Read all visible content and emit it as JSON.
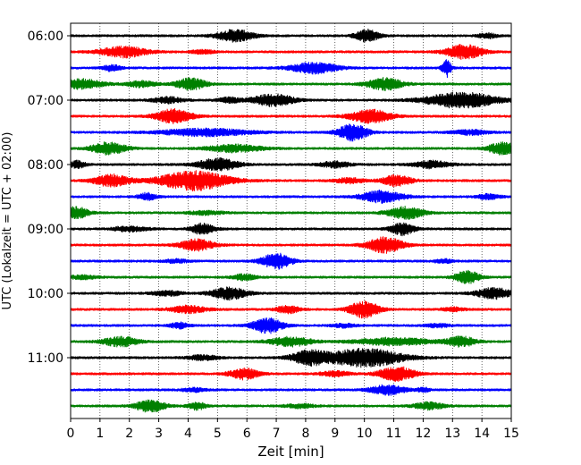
{
  "chart_data": {
    "type": "line",
    "title": "",
    "xlabel": "Zeit  [min]",
    "ylabel": "UTC (Lokalzeit = UTC + 02:00)",
    "xlim": [
      0,
      15
    ],
    "x_ticks": [
      "0",
      "1",
      "2",
      "3",
      "4",
      "5",
      "6",
      "7",
      "8",
      "9",
      "10",
      "11",
      "12",
      "13",
      "14",
      "15"
    ],
    "y_tick_labels": [
      "06:00",
      "07:00",
      "08:00",
      "09:00",
      "10:00",
      "11:00"
    ],
    "grid": "vertical dotted lines at each minute",
    "trace_interval_minutes": 15,
    "trace_colors": [
      "#000000",
      "#ff0000",
      "#0000ff",
      "#008000"
    ],
    "traces": [
      {
        "start": "06:00",
        "bursts": [
          [
            5.6,
            1.0,
            0.6
          ],
          [
            10.1,
            1.0,
            0.4
          ],
          [
            14.2,
            0.4,
            0.3
          ]
        ]
      },
      {
        "start": "06:15",
        "bursts": [
          [
            1.8,
            0.9,
            0.8
          ],
          [
            13.4,
            1.2,
            0.6
          ],
          [
            4.5,
            0.3,
            0.4
          ]
        ]
      },
      {
        "start": "06:30",
        "bursts": [
          [
            1.4,
            0.5,
            0.3
          ],
          [
            8.3,
            0.9,
            0.8
          ],
          [
            12.8,
            1.5,
            0.15
          ]
        ]
      },
      {
        "start": "06:45",
        "bursts": [
          [
            0.4,
            0.8,
            0.7
          ],
          [
            2.4,
            0.5,
            0.5
          ],
          [
            4.1,
            1.0,
            0.5
          ],
          [
            10.7,
            1.0,
            0.6
          ]
        ]
      },
      {
        "start": "07:00",
        "bursts": [
          [
            3.3,
            0.5,
            0.5
          ],
          [
            6.9,
            1.0,
            0.7
          ],
          [
            13.3,
            1.3,
            1.2
          ],
          [
            5.4,
            0.4,
            0.4
          ]
        ]
      },
      {
        "start": "07:15",
        "bursts": [
          [
            3.5,
            1.2,
            0.6
          ],
          [
            10.2,
            1.1,
            0.7
          ]
        ]
      },
      {
        "start": "07:30",
        "bursts": [
          [
            4.6,
            0.6,
            1.5
          ],
          [
            9.6,
            1.4,
            0.5
          ],
          [
            13.6,
            0.4,
            0.6
          ]
        ]
      },
      {
        "start": "07:45",
        "bursts": [
          [
            1.3,
            1.0,
            0.6
          ],
          [
            5.6,
            0.6,
            0.9
          ],
          [
            14.7,
            1.0,
            0.5
          ]
        ]
      },
      {
        "start": "08:00",
        "bursts": [
          [
            0.2,
            0.6,
            0.3
          ],
          [
            5.0,
            1.0,
            0.7
          ],
          [
            12.3,
            0.6,
            0.6
          ],
          [
            9.0,
            0.5,
            0.5
          ]
        ]
      },
      {
        "start": "08:15",
        "bursts": [
          [
            1.4,
            1.0,
            0.6
          ],
          [
            4.2,
            1.6,
            1.2
          ],
          [
            9.5,
            0.4,
            0.5
          ],
          [
            11.1,
            0.9,
            0.5
          ]
        ]
      },
      {
        "start": "08:30",
        "bursts": [
          [
            2.6,
            0.6,
            0.3
          ],
          [
            10.6,
            1.0,
            0.7
          ],
          [
            14.2,
            0.4,
            0.4
          ]
        ]
      },
      {
        "start": "08:45",
        "bursts": [
          [
            0.2,
            1.0,
            0.4
          ],
          [
            11.4,
            1.0,
            0.6
          ],
          [
            4.6,
            0.3,
            0.6
          ]
        ]
      },
      {
        "start": "09:00",
        "bursts": [
          [
            4.5,
            0.9,
            0.4
          ],
          [
            11.3,
            1.0,
            0.4
          ],
          [
            2.0,
            0.4,
            0.6
          ]
        ]
      },
      {
        "start": "09:15",
        "bursts": [
          [
            4.3,
            0.9,
            0.6
          ],
          [
            10.7,
            1.3,
            0.6
          ]
        ]
      },
      {
        "start": "09:30",
        "bursts": [
          [
            7.0,
            1.3,
            0.5
          ],
          [
            12.7,
            0.3,
            0.3
          ],
          [
            3.6,
            0.3,
            0.4
          ]
        ]
      },
      {
        "start": "09:45",
        "bursts": [
          [
            5.9,
            0.5,
            0.4
          ],
          [
            13.5,
            1.1,
            0.4
          ],
          [
            0.4,
            0.3,
            0.5
          ]
        ]
      },
      {
        "start": "10:00",
        "bursts": [
          [
            5.4,
            1.0,
            0.6
          ],
          [
            14.4,
            0.9,
            0.6
          ],
          [
            3.3,
            0.4,
            0.5
          ]
        ]
      },
      {
        "start": "10:15",
        "bursts": [
          [
            4.0,
            0.6,
            0.6
          ],
          [
            7.4,
            0.6,
            0.4
          ],
          [
            10.0,
            1.4,
            0.5
          ],
          [
            13.0,
            0.3,
            0.4
          ]
        ]
      },
      {
        "start": "10:30",
        "bursts": [
          [
            3.7,
            0.5,
            0.3
          ],
          [
            6.7,
            1.3,
            0.5
          ],
          [
            9.3,
            0.3,
            0.4
          ],
          [
            12.5,
            0.3,
            0.4
          ]
        ]
      },
      {
        "start": "10:45",
        "bursts": [
          [
            1.7,
            0.8,
            0.6
          ],
          [
            7.5,
            0.8,
            0.7
          ],
          [
            11.0,
            0.6,
            1.3
          ],
          [
            13.3,
            0.8,
            0.5
          ]
        ]
      },
      {
        "start": "11:00",
        "bursts": [
          [
            8.1,
            1.1,
            0.6
          ],
          [
            10.0,
            1.5,
            1.3
          ],
          [
            4.5,
            0.4,
            0.5
          ]
        ]
      },
      {
        "start": "11:15",
        "bursts": [
          [
            5.9,
            0.9,
            0.5
          ],
          [
            11.1,
            1.2,
            0.6
          ],
          [
            9.0,
            0.4,
            0.5
          ]
        ]
      },
      {
        "start": "11:30",
        "bursts": [
          [
            10.8,
            0.8,
            0.6
          ],
          [
            12.0,
            0.4,
            0.2
          ],
          [
            4.2,
            0.3,
            0.4
          ]
        ]
      },
      {
        "start": "11:45",
        "bursts": [
          [
            2.7,
            1.0,
            0.5
          ],
          [
            4.3,
            0.6,
            0.3
          ],
          [
            12.2,
            0.6,
            0.5
          ],
          [
            7.8,
            0.3,
            0.5
          ]
        ]
      }
    ]
  }
}
